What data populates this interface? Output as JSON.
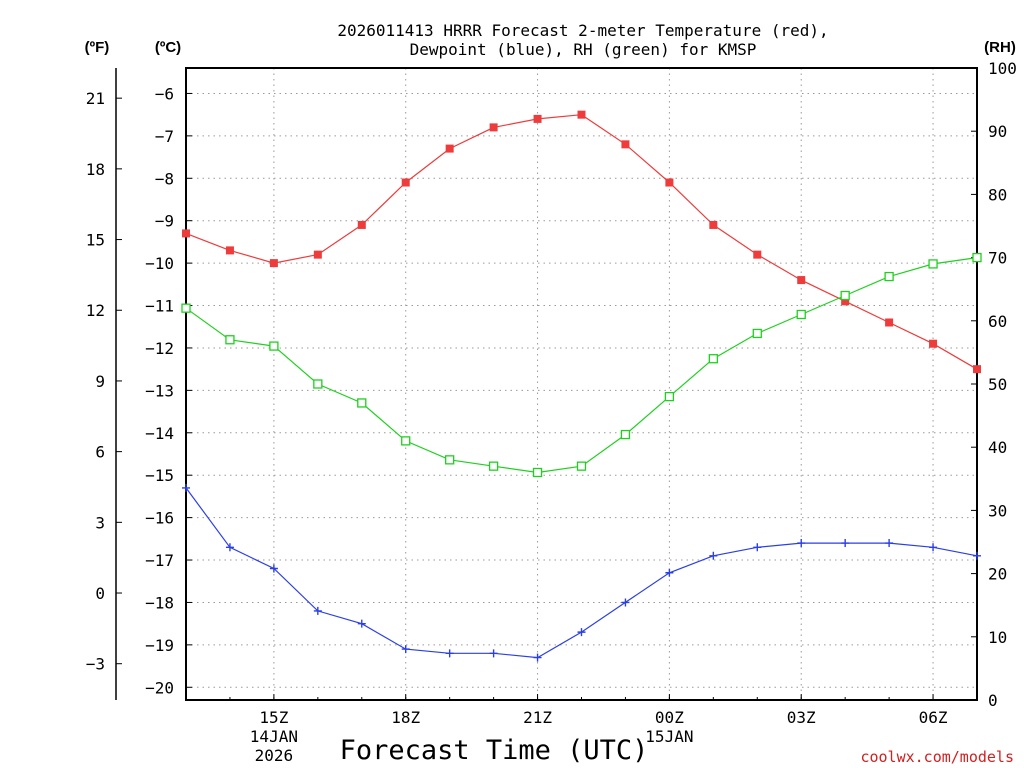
{
  "chart_data": {
    "type": "line",
    "title_line1": "2026011413 HRRR Forecast 2-meter Temperature (red),",
    "title_line2": "Dewpoint (blue), RH (green) for KMSP",
    "xlabel": "Forecast Time (UTC)",
    "credit": "coolwx.com/models",
    "unit_labels": {
      "fahrenheit": "(ºF)",
      "celsius": "(ºC)",
      "rh": "(RH)"
    },
    "x": [
      13,
      14,
      15,
      16,
      17,
      18,
      19,
      20,
      21,
      22,
      23,
      24,
      25,
      26,
      27,
      28,
      29,
      30,
      31
    ],
    "xlim": [
      13,
      31
    ],
    "x_ticks": [
      {
        "x": 15,
        "label": "15Z",
        "sub1": "14JAN",
        "sub2": "2026"
      },
      {
        "x": 18,
        "label": "18Z"
      },
      {
        "x": 21,
        "label": "21Z"
      },
      {
        "x": 24,
        "label": "00Z",
        "sub1": "15JAN"
      },
      {
        "x": 27,
        "label": "03Z"
      },
      {
        "x": 30,
        "label": "06Z"
      }
    ],
    "celsius_axis": {
      "range": [
        -20.3,
        -5.4
      ],
      "ticks": [
        -6,
        -7,
        -8,
        -9,
        -10,
        -11,
        -12,
        -13,
        -14,
        -15,
        -16,
        -17,
        -18,
        -19,
        -20
      ],
      "tick_labels": [
        "−6",
        "−7",
        "−8",
        "−9",
        "−10",
        "−11",
        "−12",
        "−13",
        "−14",
        "−15",
        "−16",
        "−17",
        "−18",
        "−19",
        "−20"
      ]
    },
    "fahrenheit_axis": {
      "ticks": [
        21,
        18,
        15,
        12,
        9,
        6,
        3,
        0,
        -3
      ],
      "tick_labels": [
        "21",
        "18",
        "15",
        "12",
        "9",
        "6",
        "3",
        "0",
        "−3"
      ]
    },
    "rh_axis": {
      "range": [
        0,
        100
      ],
      "ticks": [
        100,
        90,
        80,
        70,
        60,
        50,
        40,
        30,
        20,
        10,
        0
      ],
      "tick_labels": [
        "100",
        "90",
        "80",
        "70",
        "60",
        "50",
        "40",
        "30",
        "20",
        "10",
        "0"
      ]
    },
    "series": [
      {
        "name": "Temperature",
        "axis": "celsius",
        "color": "#ee3b3b",
        "marker": "square-filled",
        "values": [
          -9.3,
          -9.7,
          -10.0,
          -9.8,
          -9.1,
          -8.1,
          -7.3,
          -6.8,
          -6.6,
          -6.5,
          -7.2,
          -8.1,
          -9.1,
          -9.8,
          -10.4,
          -10.9,
          -11.4,
          -11.9,
          -12.5
        ]
      },
      {
        "name": "Dewpoint",
        "axis": "celsius",
        "color": "#2b3fe8",
        "marker": "plus",
        "values": [
          -15.3,
          -16.7,
          -17.2,
          -18.2,
          -18.5,
          -19.1,
          -19.2,
          -19.2,
          -19.3,
          -18.7,
          -18.0,
          -17.3,
          -16.9,
          -16.7,
          -16.6,
          -16.6,
          -16.6,
          -16.7,
          -16.9
        ]
      },
      {
        "name": "RH",
        "axis": "rh",
        "color": "#1fd11f",
        "marker": "square-open",
        "values": [
          62,
          57,
          56,
          50,
          47,
          41,
          38,
          37,
          36,
          37,
          42,
          48,
          54,
          58,
          61,
          64,
          67,
          69,
          70
        ]
      }
    ]
  }
}
